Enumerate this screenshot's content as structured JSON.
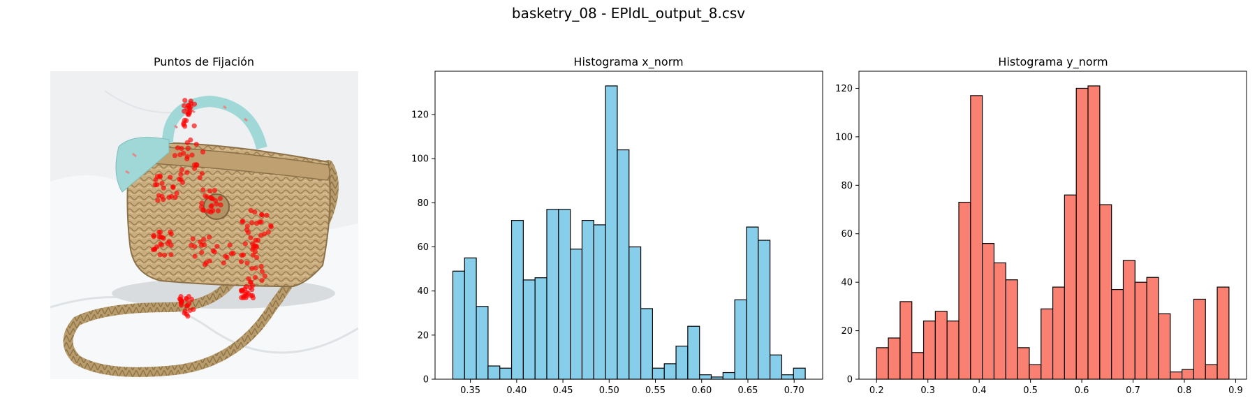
{
  "figure": {
    "suptitle": "basketry_08 - EPldL_output_8.csv"
  },
  "colors": {
    "fixation_points": "#ff0000",
    "x_hist_fill": "#87ceeb",
    "y_hist_fill": "#fa8072",
    "bar_edge": "#000000",
    "photo_background": "#eef0f2",
    "basket_straw": "#c9ad7e",
    "scarf": "#9fd8d6"
  },
  "chart_data": [
    {
      "type": "scatter",
      "title": "Puntos de Fijación",
      "xlabel": "",
      "ylabel": "",
      "axis": "off",
      "background_image": "photo of a woven straw basket bag with a turquoise scarf on the handle",
      "point_color": "#ff0000",
      "clusters": [
        {
          "x": [
            0.43,
            0.47
          ],
          "y": [
            0.09,
            0.18
          ]
        },
        {
          "x": [
            0.4,
            0.5
          ],
          "y": [
            0.22,
            0.35
          ]
        },
        {
          "x": [
            0.34,
            0.44
          ],
          "y": [
            0.34,
            0.42
          ]
        },
        {
          "x": [
            0.49,
            0.56
          ],
          "y": [
            0.38,
            0.46
          ]
        },
        {
          "x": [
            0.62,
            0.72
          ],
          "y": [
            0.45,
            0.55
          ]
        },
        {
          "x": [
            0.33,
            0.4
          ],
          "y": [
            0.52,
            0.6
          ]
        },
        {
          "x": [
            0.45,
            0.6
          ],
          "y": [
            0.53,
            0.63
          ]
        },
        {
          "x": [
            0.62,
            0.7
          ],
          "y": [
            0.56,
            0.68
          ]
        },
        {
          "x": [
            0.42,
            0.47
          ],
          "y": [
            0.72,
            0.8
          ]
        },
        {
          "x": [
            0.62,
            0.66
          ],
          "y": [
            0.68,
            0.75
          ]
        }
      ]
    },
    {
      "type": "bar",
      "title": "Histograma x_norm",
      "xlabel": "",
      "ylabel": "",
      "bin_start": 0.331,
      "bin_width": 0.0127,
      "values": [
        49,
        55,
        33,
        6,
        5,
        72,
        45,
        46,
        77,
        77,
        59,
        72,
        70,
        133,
        104,
        60,
        32,
        5,
        7,
        15,
        24,
        2,
        1,
        3,
        36,
        69,
        63,
        11,
        2,
        5
      ],
      "xlim": [
        0.3118,
        0.7308
      ],
      "ylim": [
        0,
        139.65
      ],
      "xticks": [
        0.35,
        0.4,
        0.45,
        0.5,
        0.55,
        0.6,
        0.65,
        0.7
      ],
      "xtick_labels": [
        "0.35",
        "0.40",
        "0.45",
        "0.50",
        "0.55",
        "0.60",
        "0.65",
        "0.70"
      ],
      "yticks": [
        0,
        20,
        40,
        60,
        80,
        100,
        120
      ],
      "ytick_labels": [
        "0",
        "20",
        "40",
        "60",
        "80",
        "100",
        "120"
      ],
      "fill": "#87ceeb",
      "edge": "#000000"
    },
    {
      "type": "bar",
      "title": "Histograma y_norm",
      "xlabel": "",
      "ylabel": "",
      "bin_start": 0.2,
      "bin_width": 0.0229,
      "values": [
        13,
        17,
        32,
        11,
        24,
        28,
        24,
        73,
        117,
        56,
        48,
        41,
        13,
        6,
        29,
        38,
        76,
        120,
        121,
        72,
        37,
        49,
        40,
        42,
        27,
        3,
        4,
        33,
        6,
        38
      ],
      "xlim": [
        0.1656,
        0.9212
      ],
      "ylim": [
        0,
        127.05
      ],
      "xticks": [
        0.2,
        0.3,
        0.4,
        0.5,
        0.6,
        0.7,
        0.8,
        0.9
      ],
      "xtick_labels": [
        "0.2",
        "0.3",
        "0.4",
        "0.5",
        "0.6",
        "0.7",
        "0.8",
        "0.9"
      ],
      "yticks": [
        0,
        20,
        40,
        60,
        80,
        100,
        120
      ],
      "ytick_labels": [
        "0",
        "20",
        "40",
        "60",
        "80",
        "100",
        "120"
      ],
      "fill": "#fa8072",
      "edge": "#000000"
    }
  ]
}
